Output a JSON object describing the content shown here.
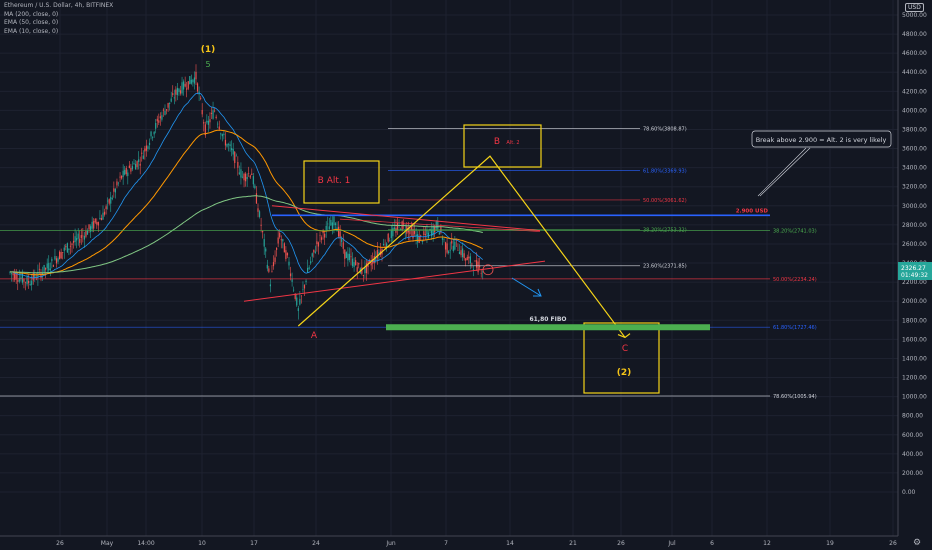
{
  "legend": {
    "symbol": "Ethereum / U.S. Dollar, 4h, BITFINEX",
    "ma200": "MA (200, close, 0)",
    "ema50": "EMA (50, close, 0)",
    "ema10": "EMA (10, close, 0)"
  },
  "currency_label": "USD",
  "price_tag": {
    "price": "2326.27",
    "countdown": "01:49:32",
    "color": "#26a69a"
  },
  "chart_data": {
    "type": "candlestick",
    "title": "Ethereum / U.S. Dollar, 4h, BITFINEX",
    "ylim": [
      -150,
      5100
    ],
    "y_ticks": [
      5000,
      4800,
      4600,
      4400,
      4200,
      4000,
      3800,
      3600,
      3400,
      3200,
      3000,
      2800,
      2600,
      2400,
      2200,
      2000,
      1800,
      1600,
      1400,
      1200,
      1000,
      800,
      600,
      400,
      200,
      0
    ],
    "y_tick_labels": [
      "5000.00",
      "4800.00",
      "4600.00",
      "4400.00",
      "4200.00",
      "4000.00",
      "3800.00",
      "3600.00",
      "3400.00",
      "3200.00",
      "3000.00",
      "2800.00",
      "2600.00",
      "2400.00",
      "2200.00",
      "2000.00",
      "1800.00",
      "1600.00",
      "1400.00",
      "1200.00",
      "1000.00",
      "800.00",
      "600.00",
      "400.00",
      "200.00",
      "0.00"
    ],
    "x_tick_labels": [
      "26",
      "May",
      "14:00",
      "10",
      "17",
      "24",
      "Jun",
      "7",
      "14",
      "21",
      "26",
      "Jul",
      "6",
      "12",
      "19",
      "26"
    ],
    "price_path": [
      {
        "x": "Apr 22",
        "y": 2300
      },
      {
        "x": "Apr 24",
        "y": 2200
      },
      {
        "x": "Apr 26",
        "y": 2350
      },
      {
        "x": "Apr 28",
        "y": 2550
      },
      {
        "x": "Apr 30",
        "y": 2700
      },
      {
        "x": "May 2",
        "y": 2900
      },
      {
        "x": "May 4",
        "y": 3300
      },
      {
        "x": "May 5",
        "y": 3400
      },
      {
        "x": "May 6",
        "y": 3480
      },
      {
        "x": "May 8",
        "y": 3900
      },
      {
        "x": "May 10",
        "y": 4200
      },
      {
        "x": "May 12",
        "y": 4350
      },
      {
        "x": "May 13",
        "y": 3800
      },
      {
        "x": "May 14",
        "y": 4000
      },
      {
        "x": "May 15",
        "y": 3700
      },
      {
        "x": "May 16",
        "y": 3550
      },
      {
        "x": "May 17",
        "y": 3300
      },
      {
        "x": "May 18",
        "y": 3350
      },
      {
        "x": "May 19",
        "y": 2800
      },
      {
        "x": "May 20",
        "y": 2200
      },
      {
        "x": "May 21",
        "y": 2700
      },
      {
        "x": "May 22",
        "y": 2400
      },
      {
        "x": "May 23",
        "y": 1900
      },
      {
        "x": "May 24",
        "y": 2300
      },
      {
        "x": "May 25",
        "y": 2600
      },
      {
        "x": "May 26",
        "y": 2750
      },
      {
        "x": "May 27",
        "y": 2850
      },
      {
        "x": "May 28",
        "y": 2500
      },
      {
        "x": "May 29",
        "y": 2400
      },
      {
        "x": "May 30",
        "y": 2300
      },
      {
        "x": "Jun 1",
        "y": 2550
      },
      {
        "x": "Jun 2",
        "y": 2700
      },
      {
        "x": "Jun 3",
        "y": 2800
      },
      {
        "x": "Jun 4",
        "y": 2750
      },
      {
        "x": "Jun 5",
        "y": 2650
      },
      {
        "x": "Jun 6",
        "y": 2700
      },
      {
        "x": "Jun 7",
        "y": 2800
      },
      {
        "x": "Jun 8",
        "y": 2550
      },
      {
        "x": "Jun 9",
        "y": 2600
      },
      {
        "x": "Jun 10",
        "y": 2450
      },
      {
        "x": "Jun 11",
        "y": 2380
      },
      {
        "x": "Jun 12",
        "y": 2330
      }
    ],
    "fib_levels": [
      {
        "label": "78.60%(3808.87)",
        "value": 3808.87,
        "color": "#d1d4dc"
      },
      {
        "label": "61.80%(3369.93)",
        "value": 3369.93,
        "color": "#2962ff"
      },
      {
        "label": "50.00%(3061.62)",
        "value": 3061.62,
        "color": "#f23645"
      },
      {
        "label": "38.20%(2753.32)",
        "value": 2753.32,
        "color": "#4caf50"
      },
      {
        "label": "23.60%(2371.85)",
        "value": 2371.85,
        "color": "#d1d4dc"
      },
      {
        "label": "38.20%(2741.03)",
        "value": 2741.03,
        "color": "#4caf50"
      },
      {
        "label": "50.00%(2234.24)",
        "value": 2234.24,
        "color": "#f23645"
      },
      {
        "label": "61.80%(1727.46)",
        "value": 1727.46,
        "color": "#2962ff"
      },
      {
        "label": "78.60%(1005.94)",
        "value": 1005.94,
        "color": "#d1d4dc"
      }
    ],
    "horizontal_level": {
      "label": "2.900 USD",
      "value": 2900,
      "color": "#f23645"
    },
    "wave_labels": [
      {
        "text": "(1)",
        "color": "#f5c518"
      },
      {
        "text": "5",
        "color": "#4caf50"
      },
      {
        "text": "A",
        "color": "#f23645"
      },
      {
        "text": "B",
        "color": "#f23645"
      },
      {
        "text": "Alt. 2",
        "color": "#f23645"
      },
      {
        "text": "B Alt. 1",
        "color": "#f23645"
      },
      {
        "text": "C",
        "color": "#f23645"
      },
      {
        "text": "(2)",
        "color": "#f5c518"
      }
    ],
    "fibo_zone_label": "61,80 FIBO",
    "callout": "Break above 2.900 = Alt.  2 is very likely"
  }
}
